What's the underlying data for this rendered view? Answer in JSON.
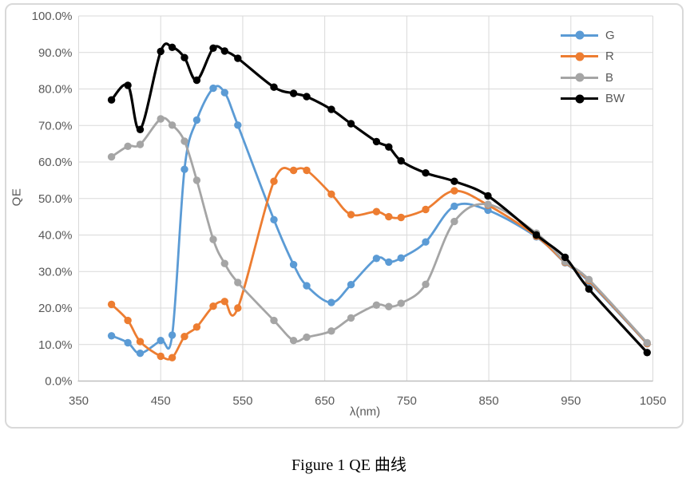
{
  "figure": {
    "caption": "Figure 1 QE 曲线"
  },
  "chart_data": {
    "type": "line",
    "title": "",
    "xlabel": "λ(nm)",
    "ylabel": "QE",
    "xlim": [
      350,
      1050
    ],
    "ylim": [
      0,
      100
    ],
    "grid": true,
    "legend_position": "top-right-inside",
    "x_tick_values": [
      350,
      450,
      550,
      650,
      750,
      850,
      950,
      1050
    ],
    "x_tick_labels": [
      "350",
      "450",
      "550",
      "650",
      "750",
      "850",
      "950",
      "1050"
    ],
    "y_tick_values": [
      0,
      10,
      20,
      30,
      40,
      50,
      60,
      70,
      80,
      90,
      100
    ],
    "y_tick_labels": [
      "0.0%",
      "10.0%",
      "20.0%",
      "30.0%",
      "40.0%",
      "50.0%",
      "60.0%",
      "70.0%",
      "80.0%",
      "90.0%",
      "100.0%"
    ],
    "x": [
      390,
      410,
      425,
      450,
      464,
      479,
      494,
      514,
      528,
      544,
      588,
      612,
      628,
      658,
      682,
      713,
      728,
      743,
      773,
      808,
      849,
      908,
      943,
      972,
      1043
    ],
    "series": [
      {
        "name": "G",
        "color": "#5B9BD5",
        "values": [
          12.4,
          10.5,
          7.6,
          11.1,
          12.6,
          58.0,
          71.5,
          80.2,
          79.0,
          70.1,
          44.2,
          31.9,
          26.1,
          21.5,
          26.4,
          33.6,
          32.6,
          33.7,
          38.1,
          47.9,
          46.8,
          39.5,
          32.4,
          27.2,
          10.2
        ]
      },
      {
        "name": "R",
        "color": "#ED7D31",
        "values": [
          21.0,
          16.6,
          10.8,
          6.8,
          6.4,
          12.2,
          14.8,
          20.5,
          21.8,
          20.0,
          54.7,
          57.7,
          57.7,
          51.2,
          45.6,
          46.4,
          45.0,
          44.8,
          47.0,
          52.1,
          48.2,
          39.7,
          32.5,
          27.5,
          10.3
        ]
      },
      {
        "name": "B",
        "color": "#A5A5A5",
        "values": [
          61.4,
          64.3,
          64.8,
          71.8,
          70.1,
          65.7,
          55.0,
          38.8,
          32.2,
          27.0,
          16.6,
          11.1,
          12.0,
          13.7,
          17.3,
          20.8,
          20.4,
          21.3,
          26.5,
          43.7,
          48.4,
          40.5,
          32.7,
          27.8,
          10.5
        ]
      },
      {
        "name": "BW",
        "color": "#000000",
        "values": [
          77.0,
          81.0,
          68.9,
          90.3,
          91.4,
          88.6,
          82.4,
          91.2,
          90.4,
          88.4,
          80.5,
          78.8,
          77.9,
          74.4,
          70.5,
          65.6,
          64.1,
          60.3,
          57.0,
          54.7,
          50.7,
          40.0,
          33.9,
          25.2,
          7.8
        ]
      }
    ]
  },
  "style": {
    "grid_color": "#D9D9D9",
    "axis_color": "#BFBFBF",
    "tick_color": "#595959",
    "frame_color": "#D9D9D9",
    "background": "#FFFFFF"
  }
}
